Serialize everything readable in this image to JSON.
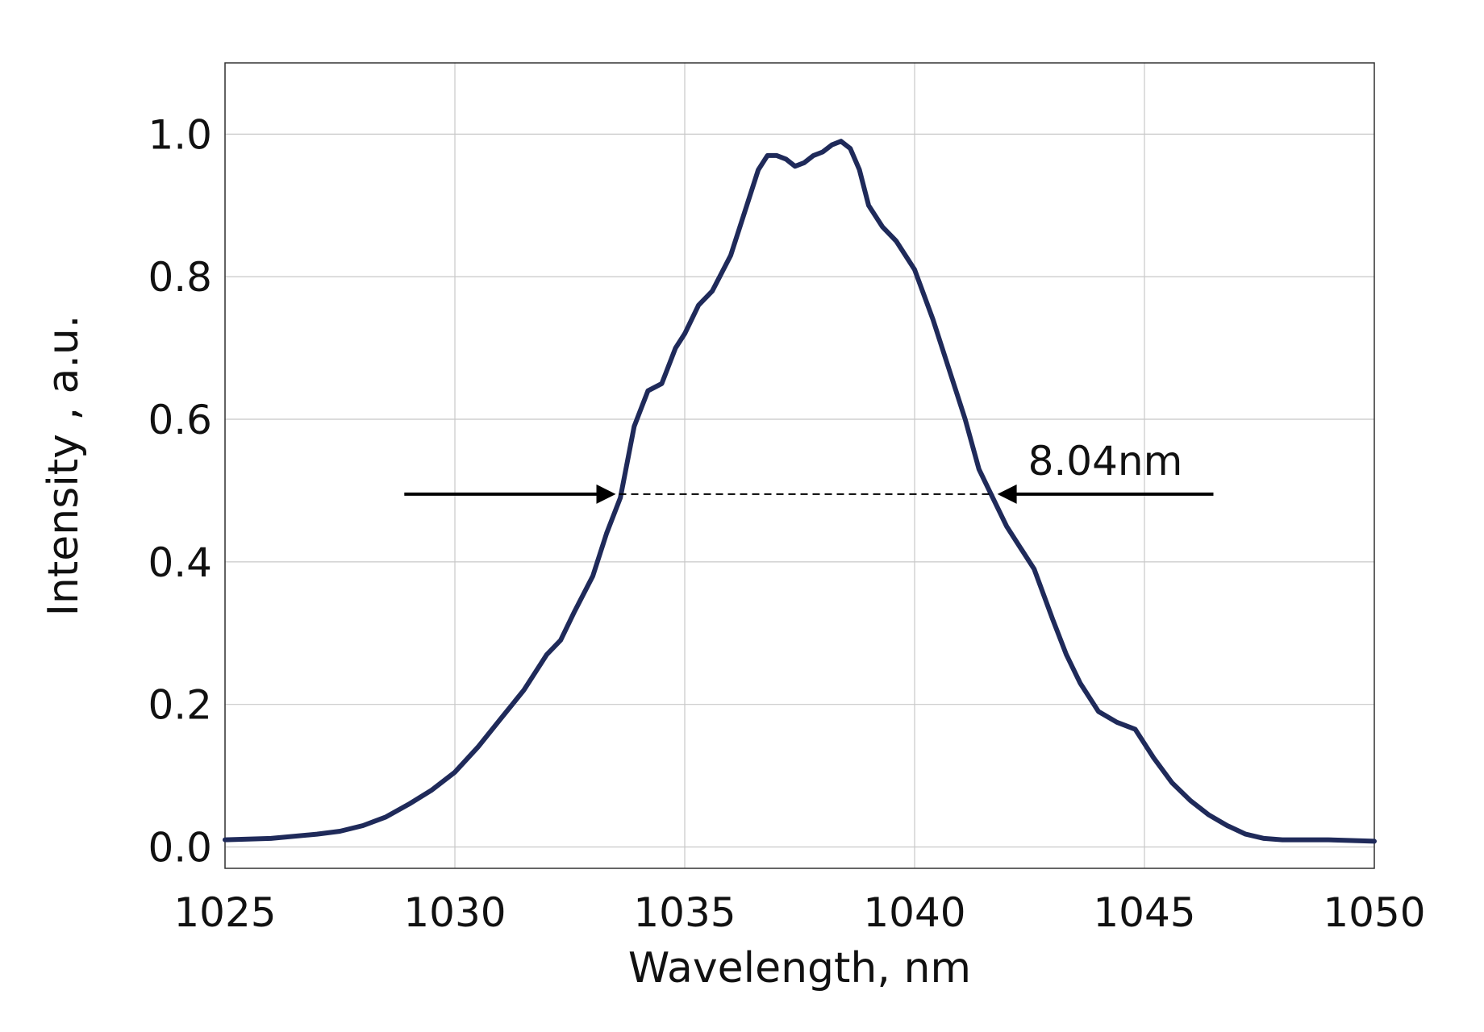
{
  "chart_data": {
    "type": "line",
    "xlabel": "Wavelength, nm",
    "ylabel": "Intensity , a.u.",
    "xlim": [
      1025,
      1050
    ],
    "ylim": [
      -0.03,
      1.1
    ],
    "xticks": [
      1025,
      1030,
      1035,
      1040,
      1045,
      1050
    ],
    "xtick_labels": [
      "1025",
      "1030",
      "1035",
      "1040",
      "1045",
      "1050"
    ],
    "yticks": [
      0.0,
      0.2,
      0.4,
      0.6,
      0.8,
      1.0
    ],
    "ytick_labels": [
      "0.0",
      "0.2",
      "0.4",
      "0.6",
      "0.8",
      "1.0"
    ],
    "grid": true,
    "colors": {
      "line": "#1f2a5a",
      "grid": "#c8c8c8",
      "annotation": "#000000"
    },
    "series": [
      {
        "x": [
          1025,
          1026,
          1027,
          1027.5,
          1028,
          1028.5,
          1029,
          1029.5,
          1030,
          1030.5,
          1031,
          1031.5,
          1032,
          1032.3,
          1032.6,
          1033,
          1033.3,
          1033.6,
          1033.9,
          1034.2,
          1034.5,
          1034.8,
          1035,
          1035.3,
          1035.6,
          1036,
          1036.3,
          1036.6,
          1036.8,
          1037,
          1037.2,
          1037.4,
          1037.6,
          1037.8,
          1038,
          1038.2,
          1038.4,
          1038.6,
          1038.8,
          1039,
          1039.3,
          1039.6,
          1040,
          1040.4,
          1040.8,
          1041.1,
          1041.4,
          1041.7,
          1042,
          1042.3,
          1042.6,
          1043,
          1043.3,
          1043.6,
          1044,
          1044.4,
          1044.8,
          1045.2,
          1045.6,
          1046,
          1046.4,
          1046.8,
          1047.2,
          1047.6,
          1048,
          1049,
          1050
        ],
        "y": [
          0.01,
          0.012,
          0.018,
          0.022,
          0.03,
          0.042,
          0.06,
          0.08,
          0.105,
          0.14,
          0.18,
          0.22,
          0.27,
          0.29,
          0.33,
          0.38,
          0.44,
          0.49,
          0.59,
          0.64,
          0.65,
          0.7,
          0.72,
          0.76,
          0.78,
          0.83,
          0.89,
          0.95,
          0.97,
          0.97,
          0.965,
          0.955,
          0.96,
          0.97,
          0.975,
          0.985,
          0.99,
          0.98,
          0.95,
          0.9,
          0.87,
          0.85,
          0.81,
          0.74,
          0.66,
          0.6,
          0.53,
          0.49,
          0.45,
          0.42,
          0.39,
          0.32,
          0.27,
          0.23,
          0.19,
          0.175,
          0.165,
          0.125,
          0.09,
          0.065,
          0.045,
          0.03,
          0.018,
          0.012,
          0.01,
          0.01,
          0.008
        ]
      }
    ],
    "annotations": [
      {
        "text": "8.04nm",
        "y": 0.495,
        "x_left": 1033.5,
        "x_right": 1041.8,
        "left_arrow_from": 1028.9,
        "right_arrow_from": 1046.5
      }
    ]
  }
}
